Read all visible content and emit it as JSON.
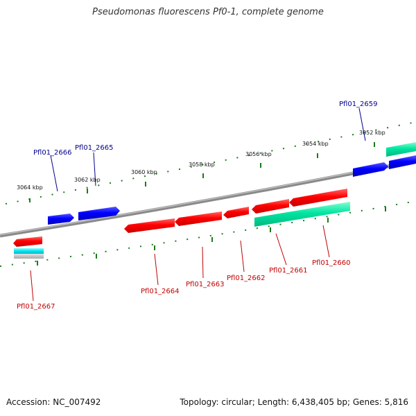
{
  "title": "Pseudomonas fluorescens Pf0-1, complete genome",
  "footer": {
    "accession": "Accession: NC_007492",
    "topology": "Topology: circular; Length: 6,438,405 bp; Genes: 5,816"
  },
  "colors": {
    "backbone": "#8a8a8a",
    "tick": "#1a7a1a",
    "forward_label": "#00008b",
    "reverse_label": "#c00000",
    "cds_red": "#ff0000",
    "cds_blue": "#0000ff",
    "cds_green": "#00e5a0",
    "cds_cyan": "#00e5f0",
    "cds_gray": "#bbbbbb"
  },
  "tick_labels": [
    "3064 kbp",
    "3062 kbp",
    "3060 kbp",
    "3058 kbp",
    "3056 kbp",
    "3054 kbp",
    "3052 kbp"
  ],
  "gene_labels": {
    "pfl01_2666": "Pfl01_2666",
    "pfl01_2665": "Pfl01_2665",
    "pfl01_2659": "Pfl01_2659",
    "pfl01_2667": "Pfl01_2667",
    "pfl01_2664": "Pfl01_2664",
    "pfl01_2663": "Pfl01_2663",
    "pfl01_2662": "Pfl01_2662",
    "pfl01_2661": "Pfl01_2661",
    "pfl01_2660": "Pfl01_2660"
  }
}
